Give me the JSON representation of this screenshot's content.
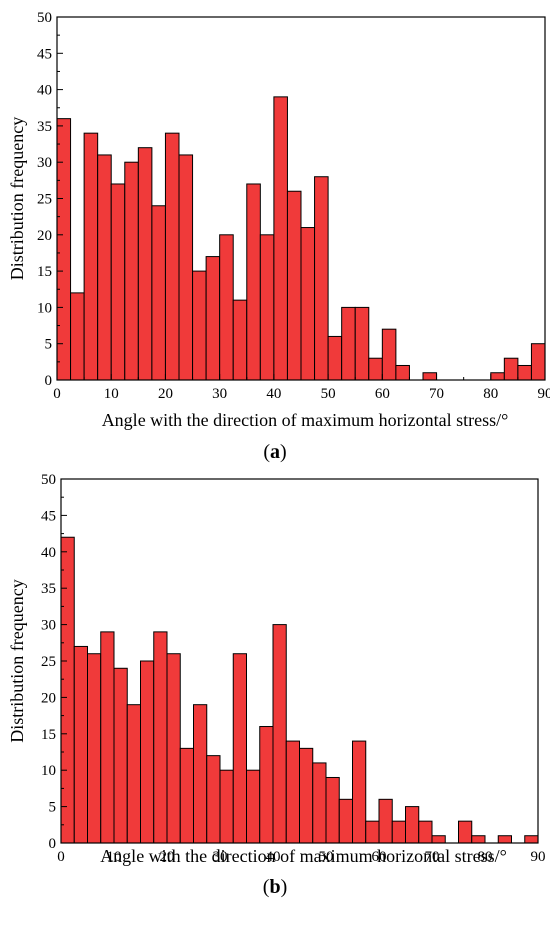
{
  "chart_data": [
    {
      "type": "bar",
      "panel_label": "a",
      "xlabel": "Angle with the direction of maximum horizontal stress/°",
      "ylabel": "Distribution frequency",
      "xlim": [
        0,
        90
      ],
      "ylim": [
        0,
        50
      ],
      "xticks": [
        "0",
        "10",
        "20",
        "30",
        "40",
        "50",
        "60",
        "70",
        "80",
        "90"
      ],
      "yticks": [
        "0",
        "5",
        "10",
        "15",
        "20",
        "25",
        "30",
        "35",
        "40",
        "45",
        "50"
      ],
      "bin_width": 2.5,
      "bin_start": 0,
      "values": [
        36,
        12,
        34,
        31,
        27,
        30,
        32,
        24,
        34,
        31,
        15,
        17,
        20,
        11,
        27,
        20,
        39,
        26,
        21,
        28,
        6,
        10,
        10,
        3,
        7,
        2,
        0,
        1,
        0,
        0,
        0,
        0,
        1,
        3,
        2,
        5
      ],
      "bar_color": "#f03a3a",
      "edge_color": "#000000",
      "grid": false
    },
    {
      "type": "bar",
      "panel_label": "b",
      "xlabel": "Angle with the direction of maximum horizontal stress/°",
      "ylabel": "Distribution frequency",
      "xlim": [
        0,
        90
      ],
      "ylim": [
        0,
        50
      ],
      "xticks": [
        "0",
        "10",
        "20",
        "30",
        "40",
        "50",
        "60",
        "70",
        "80",
        "90"
      ],
      "yticks": [
        "0",
        "5",
        "10",
        "15",
        "20",
        "25",
        "30",
        "35",
        "40",
        "45",
        "50"
      ],
      "bin_width": 2.5,
      "bin_start": 0,
      "values": [
        42,
        27,
        26,
        29,
        24,
        19,
        25,
        29,
        26,
        13,
        19,
        12,
        10,
        26,
        10,
        16,
        30,
        14,
        13,
        11,
        9,
        6,
        14,
        3,
        6,
        3,
        5,
        3,
        1,
        0,
        3,
        1,
        0,
        1,
        0,
        1
      ],
      "bar_color": "#f03a3a",
      "edge_color": "#000000",
      "grid": false
    }
  ]
}
